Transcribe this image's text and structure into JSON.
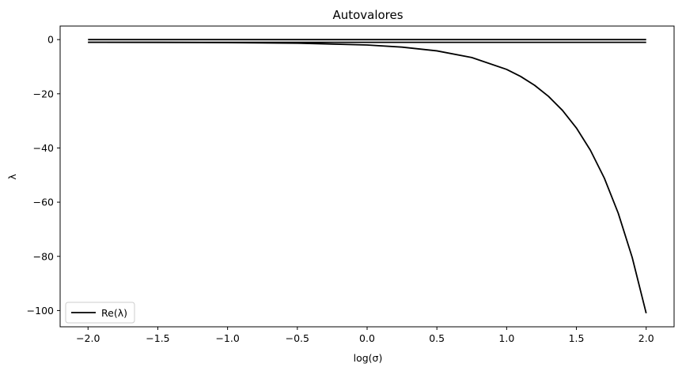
{
  "chart_data": {
    "type": "line",
    "title": "Autovalores",
    "xlabel": "log(σ)",
    "ylabel": "λ",
    "xlim": [
      -2.2,
      2.2
    ],
    "ylim": [
      -106,
      5
    ],
    "xticks": [
      {
        "value": -2.0,
        "label": "−2.0"
      },
      {
        "value": -1.5,
        "label": "−1.5"
      },
      {
        "value": -1.0,
        "label": "−1.0"
      },
      {
        "value": -0.5,
        "label": "−0.5"
      },
      {
        "value": 0.0,
        "label": "0.0"
      },
      {
        "value": 0.5,
        "label": "0.5"
      },
      {
        "value": 1.0,
        "label": "1.0"
      },
      {
        "value": 1.5,
        "label": "1.5"
      },
      {
        "value": 2.0,
        "label": "2.0"
      }
    ],
    "yticks": [
      {
        "value": 0,
        "label": "0"
      },
      {
        "value": -20,
        "label": "−20"
      },
      {
        "value": -40,
        "label": "−40"
      },
      {
        "value": -60,
        "label": "−60"
      },
      {
        "value": -80,
        "label": "−80"
      },
      {
        "value": -100,
        "label": "−100"
      }
    ],
    "grid": false,
    "legend": {
      "position": "lower-left",
      "entries": [
        "Re(λ)"
      ]
    },
    "color": "#000000",
    "x": [
      -2.0,
      -1.5,
      -1.0,
      -0.5,
      0.0,
      0.25,
      0.5,
      0.75,
      1.0,
      1.1,
      1.2,
      1.3,
      1.4,
      1.5,
      1.6,
      1.7,
      1.8,
      1.9,
      2.0
    ],
    "series": [
      {
        "name": "Re(λ)",
        "values": [
          -0.01,
          -0.01,
          -0.01,
          -0.01,
          -0.01,
          -0.01,
          -0.01,
          -0.01,
          -0.01,
          -0.01,
          -0.01,
          -0.01,
          -0.01,
          -0.01,
          -0.01,
          -0.01,
          -0.01,
          -0.01,
          -0.01
        ]
      },
      {
        "values": [
          -1.0,
          -1.0,
          -1.0,
          -1.0,
          -1.0,
          -1.0,
          -1.0,
          -1.0,
          -1.0,
          -1.0,
          -1.0,
          -1.0,
          -1.0,
          -1.0,
          -1.0,
          -1.0,
          -1.0,
          -1.0,
          -1.0
        ]
      },
      {
        "values": [
          -1.01,
          -1.03,
          -1.1,
          -1.32,
          -2.0,
          -2.78,
          -4.16,
          -6.62,
          -11.0,
          -13.59,
          -16.85,
          -20.95,
          -26.12,
          -32.62,
          -40.81,
          -51.12,
          -64.1,
          -80.43,
          -101.0
        ]
      }
    ]
  }
}
